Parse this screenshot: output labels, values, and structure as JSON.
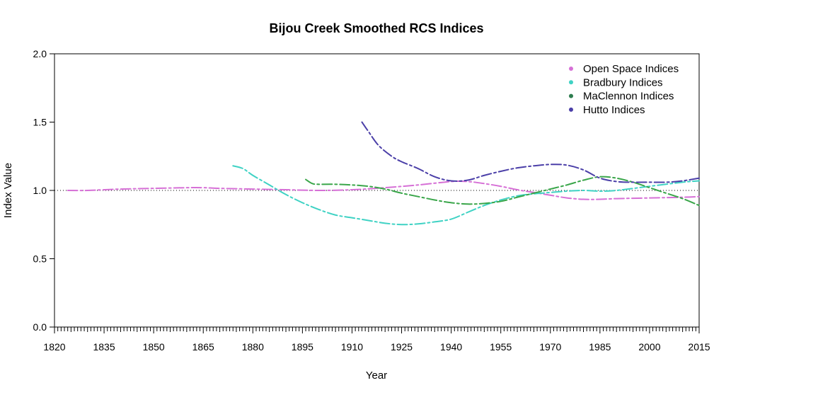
{
  "chart_data": {
    "type": "line",
    "title": "Bijou Creek Smoothed RCS Indices",
    "xlabel": "Year",
    "ylabel": "Index Value",
    "xlim": [
      1820,
      2015
    ],
    "ylim": [
      0,
      2
    ],
    "xticks": [
      "1820",
      "1835",
      "1850",
      "1865",
      "1880",
      "1895",
      "1910",
      "1925",
      "1940",
      "1955",
      "1970",
      "1985",
      "2000",
      "2015"
    ],
    "yticks": [
      "0.0",
      "0.5",
      "1.0",
      "1.5",
      "2.0"
    ],
    "reference_line": 1.0,
    "legend_position": "top-right",
    "series": [
      {
        "name": "Open Space Indices",
        "color": "#d670d6",
        "x": [
          1824,
          1830,
          1840,
          1850,
          1860,
          1865,
          1870,
          1880,
          1890,
          1900,
          1910,
          1920,
          1930,
          1940,
          1945,
          1950,
          1955,
          1960,
          1965,
          1970,
          1975,
          1980,
          1985,
          1990,
          2000,
          2010,
          2015
        ],
        "y": [
          1.0,
          1.0,
          1.01,
          1.015,
          1.02,
          1.02,
          1.015,
          1.01,
          1.005,
          1.0,
          1.005,
          1.02,
          1.04,
          1.065,
          1.065,
          1.05,
          1.03,
          1.005,
          0.985,
          0.965,
          0.945,
          0.935,
          0.935,
          0.94,
          0.945,
          0.95,
          0.955
        ]
      },
      {
        "name": "Bradbury Indices",
        "color": "#3fd2c4",
        "x": [
          1874,
          1877,
          1880,
          1885,
          1890,
          1895,
          1900,
          1905,
          1910,
          1915,
          1920,
          1925,
          1930,
          1935,
          1940,
          1945,
          1950,
          1955,
          1960,
          1965,
          1970,
          1975,
          1980,
          1985,
          1990,
          2000,
          2010,
          2015
        ],
        "y": [
          1.18,
          1.16,
          1.11,
          1.04,
          0.97,
          0.91,
          0.86,
          0.82,
          0.8,
          0.78,
          0.76,
          0.75,
          0.755,
          0.77,
          0.79,
          0.84,
          0.89,
          0.93,
          0.96,
          0.975,
          0.985,
          0.995,
          1.0,
          0.995,
          1.0,
          1.03,
          1.06,
          1.07
        ]
      },
      {
        "name": "MaClennon Indices",
        "color": "#3aa64a",
        "x": [
          1896,
          1898,
          1900,
          1905,
          1910,
          1915,
          1920,
          1925,
          1930,
          1935,
          1940,
          1945,
          1950,
          1955,
          1960,
          1965,
          1970,
          1975,
          1980,
          1985,
          1990,
          1995,
          2000,
          2005,
          2010,
          2015
        ],
        "y": [
          1.08,
          1.05,
          1.045,
          1.045,
          1.04,
          1.03,
          1.01,
          0.98,
          0.955,
          0.93,
          0.91,
          0.9,
          0.905,
          0.92,
          0.95,
          0.98,
          1.01,
          1.04,
          1.075,
          1.1,
          1.09,
          1.06,
          1.02,
          0.98,
          0.94,
          0.89
        ]
      },
      {
        "name": "Hutto Indices",
        "color": "#4b3fa8",
        "x": [
          1913,
          1915,
          1918,
          1922,
          1925,
          1930,
          1935,
          1940,
          1945,
          1950,
          1955,
          1960,
          1965,
          1970,
          1975,
          1980,
          1985,
          1990,
          1995,
          2000,
          2005,
          2010,
          2015
        ],
        "y": [
          1.5,
          1.43,
          1.33,
          1.25,
          1.21,
          1.16,
          1.1,
          1.07,
          1.075,
          1.11,
          1.14,
          1.165,
          1.18,
          1.19,
          1.185,
          1.15,
          1.09,
          1.065,
          1.06,
          1.06,
          1.06,
          1.07,
          1.09
        ]
      }
    ],
    "legend_dot_colors": [
      "#d670d6",
      "#3fd2c4",
      "#2e7d4f",
      "#4b3fa8"
    ]
  }
}
